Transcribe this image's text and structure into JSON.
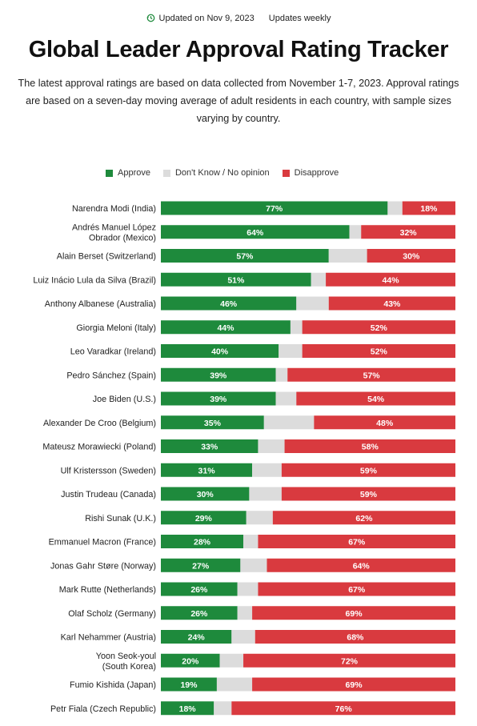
{
  "header": {
    "updated": "Updated on Nov 9, 2023",
    "frequency": "Updates weekly",
    "update_icon": "clock-refresh-icon",
    "title": "Global Leader Approval Rating Tracker",
    "subtitle": "The latest approval ratings are based on data collected from November 1-7, 2023. Approval ratings are based on a seven-day moving average of adult residents in each country, with sample sizes varying by country."
  },
  "legend": {
    "position": "top",
    "items": [
      {
        "label": "Approve",
        "color": "#1e8a3c"
      },
      {
        "label": "Don't Know / No opinion",
        "color": "#dcdcdc"
      },
      {
        "label": "Disapprove",
        "color": "#d93a3f"
      }
    ]
  },
  "chart_data": {
    "type": "bar",
    "orientation": "horizontal",
    "stacked": true,
    "normalized_to": 100,
    "categories": [
      [
        "Narendra Modi (India)"
      ],
      [
        "Andrés Manuel López",
        "Obrador (Mexico)"
      ],
      [
        "Alain Berset (Switzerland)"
      ],
      [
        "Luiz Inácio Lula da Silva (Brazil)"
      ],
      [
        "Anthony Albanese (Australia)"
      ],
      [
        "Giorgia Meloni (Italy)"
      ],
      [
        "Leo Varadkar (Ireland)"
      ],
      [
        "Pedro Sánchez (Spain)"
      ],
      [
        "Joe Biden (U.S.)"
      ],
      [
        "Alexander De Croo (Belgium)"
      ],
      [
        "Mateusz Morawiecki (Poland)"
      ],
      [
        "Ulf Kristersson (Sweden)"
      ],
      [
        "Justin Trudeau (Canada)"
      ],
      [
        "Rishi Sunak (U.K.)"
      ],
      [
        "Emmanuel Macron (France)"
      ],
      [
        "Jonas Gahr Støre (Norway)"
      ],
      [
        "Mark Rutte (Netherlands)"
      ],
      [
        "Olaf Scholz (Germany)"
      ],
      [
        "Karl Nehammer (Austria)"
      ],
      [
        "Yoon Seok-youl",
        "(South Korea)"
      ],
      [
        "Fumio Kishida (Japan)"
      ],
      [
        "Petr Fiala (Czech Republic)"
      ]
    ],
    "series": [
      {
        "name": "Approve",
        "color": "#1e8a3c",
        "values": [
          77,
          64,
          57,
          51,
          46,
          44,
          40,
          39,
          39,
          35,
          33,
          31,
          30,
          29,
          28,
          27,
          26,
          26,
          24,
          20,
          19,
          18
        ],
        "labels": [
          "77%",
          "64%",
          "57%",
          "51%",
          "46%",
          "44%",
          "40%",
          "39%",
          "39%",
          "35%",
          "33%",
          "31%",
          "30%",
          "29%",
          "28%",
          "27%",
          "26%",
          "26%",
          "24%",
          "20%",
          "19%",
          "18%"
        ]
      },
      {
        "name": "Don't Know / No opinion",
        "color": "#dcdcdc",
        "values": [
          5,
          4,
          13,
          5,
          11,
          4,
          8,
          4,
          7,
          17,
          9,
          10,
          11,
          9,
          5,
          9,
          7,
          5,
          8,
          8,
          12,
          6
        ]
      },
      {
        "name": "Disapprove",
        "color": "#d93a3f",
        "values": [
          18,
          32,
          30,
          44,
          43,
          52,
          52,
          57,
          54,
          48,
          58,
          59,
          59,
          62,
          67,
          64,
          67,
          69,
          68,
          72,
          69,
          76
        ],
        "labels": [
          "18%",
          "32%",
          "30%",
          "44%",
          "43%",
          "52%",
          "52%",
          "57%",
          "54%",
          "48%",
          "58%",
          "59%",
          "59%",
          "62%",
          "67%",
          "64%",
          "67%",
          "69%",
          "68%",
          "72%",
          "69%",
          "76%"
        ]
      }
    ],
    "xlim": [
      0,
      100
    ],
    "grid": false
  }
}
